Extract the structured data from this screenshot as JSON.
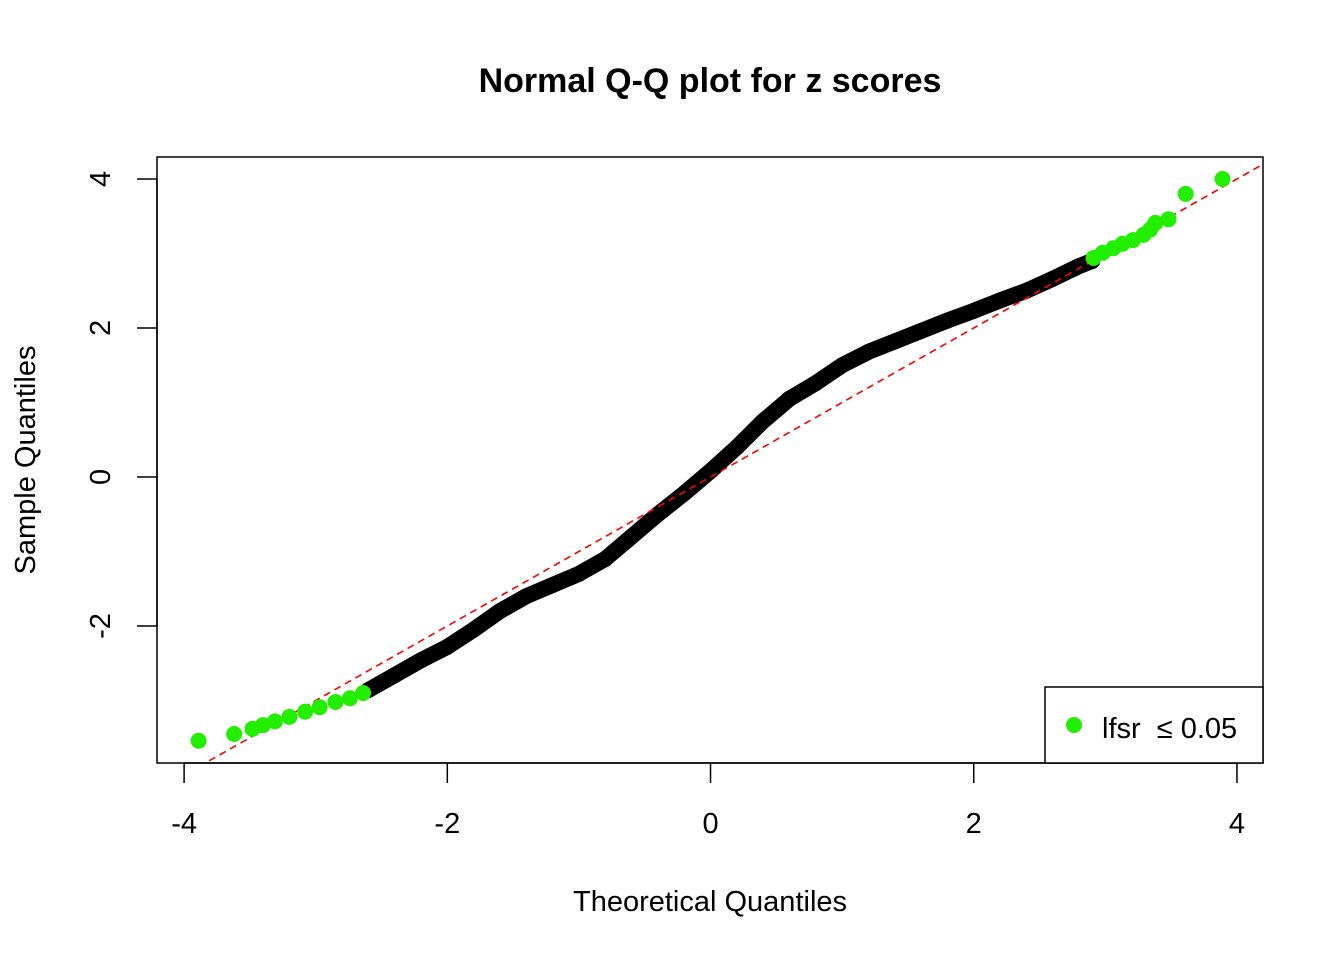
{
  "chart_data": {
    "type": "scatter",
    "title": "Normal Q-Q plot for z scores",
    "xlabel": "Theoretical Quantiles",
    "ylabel": "Sample Quantiles",
    "xlim": [
      -4.206,
      4.198
    ],
    "ylim": [
      -3.839,
      4.295
    ],
    "xticks": [
      -4,
      -2,
      0,
      2,
      4
    ],
    "yticks": [
      4,
      2,
      0,
      -2
    ],
    "grid": false,
    "legend": {
      "placement": "bottom-right",
      "label": "lfsr  ≤ 0.05",
      "color": "#22ee00"
    },
    "reference_line": {
      "slope": 1.0,
      "intercept": 0.0,
      "color": "#ff0000",
      "style": "dashed"
    },
    "series": [
      {
        "color": "#000000",
        "points": [
          [
            -2.6,
            -2.86
          ],
          [
            -2.4,
            -2.66
          ],
          [
            -2.2,
            -2.46
          ],
          [
            -2.0,
            -2.28
          ],
          [
            -1.8,
            -2.05
          ],
          [
            -1.6,
            -1.8
          ],
          [
            -1.4,
            -1.6
          ],
          [
            -1.2,
            -1.45
          ],
          [
            -1.0,
            -1.3
          ],
          [
            -0.8,
            -1.1
          ],
          [
            -0.6,
            -0.8
          ],
          [
            -0.4,
            -0.5
          ],
          [
            -0.2,
            -0.22
          ],
          [
            0,
            0.08
          ],
          [
            0.2,
            0.4
          ],
          [
            0.4,
            0.75
          ],
          [
            0.6,
            1.05
          ],
          [
            0.8,
            1.26
          ],
          [
            1.0,
            1.5
          ],
          [
            1.2,
            1.68
          ],
          [
            1.4,
            1.82
          ],
          [
            1.6,
            1.96
          ],
          [
            1.8,
            2.1
          ],
          [
            2.0,
            2.23
          ],
          [
            2.2,
            2.37
          ],
          [
            2.4,
            2.5
          ],
          [
            2.6,
            2.66
          ],
          [
            2.8,
            2.83
          ],
          [
            2.9,
            2.9
          ]
        ]
      },
      {
        "name": "lfsr  ≤ 0.05",
        "color": "#22ee00",
        "points": [
          [
            -3.89,
            -3.54
          ],
          [
            -3.62,
            -3.45
          ],
          [
            -3.48,
            -3.38
          ],
          [
            -3.4,
            -3.33
          ],
          [
            -3.31,
            -3.28
          ],
          [
            -3.2,
            -3.22
          ],
          [
            -3.08,
            -3.15
          ],
          [
            -2.97,
            -3.09
          ],
          [
            -2.85,
            -3.02
          ],
          [
            -2.74,
            -2.97
          ],
          [
            -2.64,
            -2.9
          ],
          [
            2.91,
            2.94
          ],
          [
            2.98,
            3.01
          ],
          [
            3.06,
            3.07
          ],
          [
            3.13,
            3.13
          ],
          [
            3.21,
            3.18
          ],
          [
            3.29,
            3.25
          ],
          [
            3.34,
            3.32
          ],
          [
            3.38,
            3.41
          ],
          [
            3.48,
            3.46
          ],
          [
            3.61,
            3.8
          ],
          [
            3.89,
            4.0
          ]
        ]
      }
    ]
  }
}
